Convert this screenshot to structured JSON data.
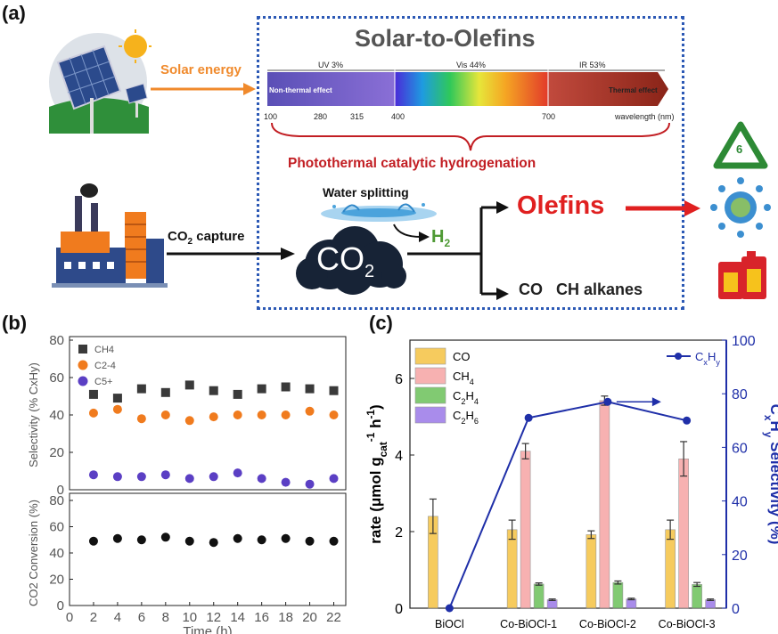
{
  "panel_a": {
    "tag": "(a)",
    "solar_energy": "Solar energy",
    "title": "Solar-to-Olefins",
    "spectrum": {
      "bands": [
        "UV 3%",
        "Vis 44%",
        "IR 53%"
      ],
      "non_thermal": "Non-thermal effect",
      "thermal": "Thermal effect",
      "ticks": [
        "100",
        "280",
        "315",
        "400",
        "700"
      ],
      "axis_label": "wavelength (nm)"
    },
    "photothermal": "Photothermal catalytic hydrogenation",
    "water_splitting": "Water splitting",
    "h2": "H",
    "h2_sub": "2",
    "co2_capture": "CO",
    "co2_capture_sub": "2",
    "co2_capture_rest": " capture",
    "co2_cloud": "CO",
    "co2_cloud_sub": "2",
    "olefins": "Olefins",
    "byproducts": "CO   CH alkanes",
    "recycle_number": "6",
    "colors": {
      "accent_blue": "#2c59b5",
      "olefins_red": "#e02020",
      "orange": "#f08a2c",
      "green": "#4f9a35"
    }
  },
  "panel_b": {
    "tag": "(b)",
    "chart_data": [
      {
        "type": "scatter",
        "ylabel": "Selectivity (% CxHy)",
        "ylim": [
          0,
          80
        ],
        "yticks": [
          "0",
          "20",
          "40",
          "60",
          "80"
        ],
        "x": [
          2,
          4,
          6,
          8,
          10,
          12,
          14,
          16,
          18,
          20,
          22
        ],
        "series": [
          {
            "name": "CH4",
            "color": "#3a3a3a",
            "marker": "square",
            "values": [
              51,
              49,
              54,
              52,
              56,
              53,
              51,
              54,
              55,
              54,
              53
            ]
          },
          {
            "name": "C2-4",
            "color": "#f07b1e",
            "marker": "circle",
            "values": [
              41,
              43,
              38,
              40,
              37,
              39,
              40,
              40,
              40,
              42,
              40
            ]
          },
          {
            "name": "C5+",
            "color": "#5b3fc4",
            "marker": "circle",
            "values": [
              8,
              7,
              7,
              8,
              6,
              7,
              9,
              6,
              4,
              3,
              6
            ]
          }
        ]
      },
      {
        "type": "scatter",
        "ylabel": "CO2 Conversion (%)",
        "xlabel": "Time (h)",
        "ylim": [
          0,
          80
        ],
        "yticks": [
          "0",
          "20",
          "40",
          "60",
          "80"
        ],
        "xticks": [
          "0",
          "2",
          "4",
          "6",
          "8",
          "10",
          "12",
          "14",
          "16",
          "18",
          "20",
          "22"
        ],
        "x": [
          2,
          4,
          6,
          8,
          10,
          12,
          14,
          16,
          18,
          20,
          22
        ],
        "series": [
          {
            "color": "#111111",
            "marker": "circle",
            "values": [
              49,
              51,
              50,
              52,
              49,
              48,
              51,
              50,
              51,
              49,
              49
            ]
          }
        ]
      }
    ]
  },
  "panel_c": {
    "tag": "(c)",
    "chart_data": {
      "type": "bar",
      "categories": [
        "BiOCl",
        "Co-BiOCl-1",
        "Co-BiOCl-2",
        "Co-BiOCl-3"
      ],
      "ylabel": "rate (μmol g",
      "ylabel_sub": "cat",
      "ylabel_sup1": "-1",
      "ylabel_mid": " h",
      "ylabel_sup2": "-1",
      "ylabel_end": ")",
      "y2label": "C",
      "y2label_sub1": "x",
      "y2label_mid": "H",
      "y2label_sub2": "y",
      "y2label_end": " Selectivity (%)",
      "ylim": [
        0,
        7
      ],
      "yticks": [
        "0",
        "2",
        "4",
        "6"
      ],
      "y2lim": [
        0,
        100
      ],
      "y2ticks": [
        "0",
        "20",
        "40",
        "60",
        "80",
        "100"
      ],
      "series": [
        {
          "name": "CO",
          "color": "#f5c242",
          "values": [
            2.4,
            2.05,
            1.92,
            2.05
          ],
          "errors": [
            0.45,
            0.25,
            0.1,
            0.25
          ]
        },
        {
          "name": "CH4",
          "name_base": "CH",
          "name_sub": "4",
          "color": "#f6a4a4",
          "values": [
            0,
            4.1,
            5.42,
            3.9
          ],
          "errors": [
            0,
            0.2,
            0.12,
            0.45
          ]
        },
        {
          "name": "C2H4",
          "name_base": "C",
          "name_sub": "2",
          "name_mid": "H",
          "name_sub2": "4",
          "color": "#6cc15a",
          "values": [
            0,
            0.63,
            0.67,
            0.62
          ],
          "errors": [
            0,
            0.03,
            0.04,
            0.05
          ]
        },
        {
          "name": "C2H6",
          "name_base": "C",
          "name_sub": "2",
          "name_mid": "H",
          "name_sub2": "6",
          "color": "#9b78e8",
          "values": [
            0,
            0.22,
            0.24,
            0.22
          ],
          "errors": [
            0,
            0.02,
            0.02,
            0.02
          ]
        }
      ],
      "line": {
        "name": "CxHy",
        "name_base": "C",
        "name_sub": "x",
        "name_mid": "H",
        "name_sub2": "y",
        "color": "#1f2fa8",
        "values": [
          0,
          71,
          77,
          70
        ]
      }
    }
  }
}
